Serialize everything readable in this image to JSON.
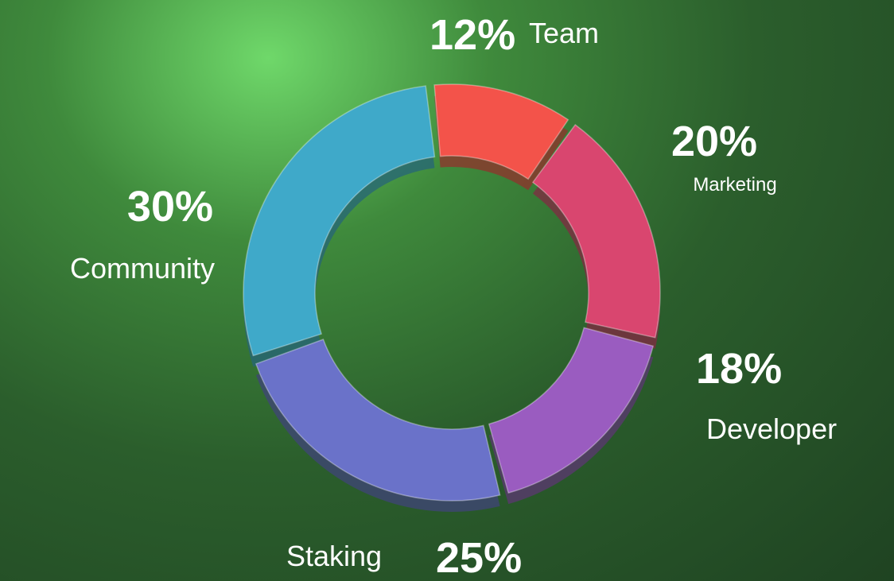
{
  "chart_data": {
    "type": "donut",
    "categories": [
      "Team",
      "Marketing",
      "Developer",
      "Staking",
      "Community"
    ],
    "values": [
      12,
      20,
      18,
      25,
      30
    ],
    "value_labels": [
      "12%",
      "20%",
      "18%",
      "25%",
      "30%"
    ],
    "colors": [
      "#f3534a",
      "#d9466f",
      "#9a5cc0",
      "#6a72c9",
      "#3fa9c9"
    ]
  }
}
